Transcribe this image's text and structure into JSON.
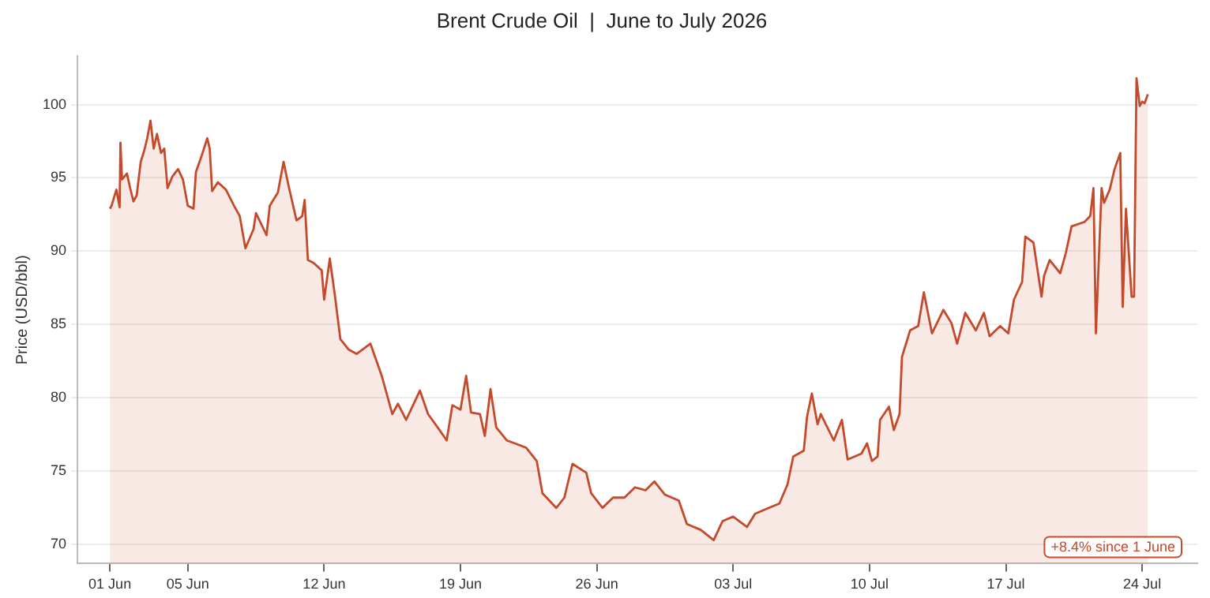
{
  "chart_data": {
    "type": "area",
    "title": "Brent Crude Oil  |  June to July 2026",
    "ylabel": "Price (USD/bbl)",
    "x": [
      "2026-06-01T00:00",
      "2026-06-01T02:00",
      "2026-06-01T08:00",
      "2026-06-01T12:00",
      "2026-06-01T13:00",
      "2026-06-01T15:00",
      "2026-06-01T21:00",
      "2026-06-02T01:00",
      "2026-06-02T05:00",
      "2026-06-02T09:00",
      "2026-06-02T14:00",
      "2026-06-02T18:00",
      "2026-06-02T22:00",
      "2026-06-03T02:00",
      "2026-06-03T06:00",
      "2026-06-03T10:00",
      "2026-06-03T15:00",
      "2026-06-03T19:00",
      "2026-06-03T23:00",
      "2026-06-04T05:00",
      "2026-06-04T12:00",
      "2026-06-04T18:00",
      "2026-06-05T00:00",
      "2026-06-05T07:00",
      "2026-06-05T10:00",
      "2026-06-05T17:00",
      "2026-06-06T00:00",
      "2026-06-06T03:00",
      "2026-06-06T06:00",
      "2026-06-06T13:00",
      "2026-06-06T23:00",
      "2026-06-07T09:00",
      "2026-06-07T16:00",
      "2026-06-07T23:00",
      "2026-06-08T09:00",
      "2026-06-08T12:00",
      "2026-06-09T01:00",
      "2026-06-09T05:00",
      "2026-06-09T15:00",
      "2026-06-09T22:00",
      "2026-06-10T04:00",
      "2026-06-10T14:00",
      "2026-06-10T21:00",
      "2026-06-11T00:00",
      "2026-06-11T04:00",
      "2026-06-11T11:00",
      "2026-06-11T21:00",
      "2026-06-12T00:00",
      "2026-06-12T07:00",
      "2026-06-12T13:00",
      "2026-06-12T20:00",
      "2026-06-13T06:00",
      "2026-06-13T16:00",
      "2026-06-14T09:00",
      "2026-06-14T23:00",
      "2026-06-15T12:00",
      "2026-06-15T19:00",
      "2026-06-16T05:00",
      "2026-06-16T22:00",
      "2026-06-17T08:00",
      "2026-06-17T21:00",
      "2026-06-18T07:00",
      "2026-06-18T14:00",
      "2026-06-19T00:00",
      "2026-06-19T07:00",
      "2026-06-19T13:00",
      "2026-06-20T00:00",
      "2026-06-20T06:00",
      "2026-06-20T13:00",
      "2026-06-20T20:00",
      "2026-06-21T09:00",
      "2026-06-21T19:00",
      "2026-06-22T09:00",
      "2026-06-22T22:00",
      "2026-06-23T05:00",
      "2026-06-23T22:00",
      "2026-06-24T08:00",
      "2026-06-24T18:00",
      "2026-06-25T11:00",
      "2026-06-25T17:00",
      "2026-06-26T07:00",
      "2026-06-26T20:00",
      "2026-06-27T10:00",
      "2026-06-27T23:00",
      "2026-06-28T12:00",
      "2026-06-28T23:00",
      "2026-06-29T12:00",
      "2026-06-30T05:00",
      "2026-06-30T15:00",
      "2026-07-01T08:00",
      "2026-07-02T00:00",
      "2026-07-02T11:00",
      "2026-07-03T00:00",
      "2026-07-03T17:00",
      "2026-07-04T03:00",
      "2026-07-04T20:00",
      "2026-07-05T09:00",
      "2026-07-05T19:00",
      "2026-07-06T02:00",
      "2026-07-06T15:00",
      "2026-07-06T19:00",
      "2026-07-07T01:00",
      "2026-07-07T08:00",
      "2026-07-07T12:00",
      "2026-07-08T04:00",
      "2026-07-08T14:00",
      "2026-07-08T21:00",
      "2026-07-09T14:00",
      "2026-07-09T21:00",
      "2026-07-10T03:00",
      "2026-07-10T10:00",
      "2026-07-10T13:00",
      "2026-07-11T00:00",
      "2026-07-11T06:00",
      "2026-07-11T13:00",
      "2026-07-11T16:00",
      "2026-07-12T02:00",
      "2026-07-12T12:00",
      "2026-07-12T19:00",
      "2026-07-13T05:00",
      "2026-07-13T19:00",
      "2026-07-14T05:00",
      "2026-07-14T12:00",
      "2026-07-14T22:00",
      "2026-07-15T11:00",
      "2026-07-15T21:00",
      "2026-07-16T04:00",
      "2026-07-16T17:00",
      "2026-07-17T03:00",
      "2026-07-17T10:00",
      "2026-07-17T20:00",
      "2026-07-18T00:00",
      "2026-07-18T10:00",
      "2026-07-18T20:00",
      "2026-07-18T23:00",
      "2026-07-19T06:00",
      "2026-07-19T19:00",
      "2026-07-20T02:00",
      "2026-07-20T09:00",
      "2026-07-21T01:00",
      "2026-07-21T08:00",
      "2026-07-21T12:00",
      "2026-07-21T15:00",
      "2026-07-21T22:00",
      "2026-07-22T01:00",
      "2026-07-22T08:00",
      "2026-07-22T14:00",
      "2026-07-22T21:00",
      "2026-07-23T00:00",
      "2026-07-23T04:00",
      "2026-07-23T11:00",
      "2026-07-23T14:00",
      "2026-07-23T17:00",
      "2026-07-23T21:00",
      "2026-07-24T00:00",
      "2026-07-24T03:00",
      "2026-07-24T07:00"
    ],
    "series": [
      {
        "color": "#c44a2c",
        "values": [
          92.9,
          93.1,
          94.2,
          93.0,
          97.4,
          94.9,
          95.3,
          94.3,
          93.4,
          93.8,
          96.1,
          96.8,
          97.7,
          98.9,
          97.0,
          98.0,
          96.7,
          97.0,
          94.3,
          95.1,
          95.6,
          94.9,
          93.1,
          92.9,
          95.4,
          96.5,
          97.7,
          97.0,
          94.1,
          94.7,
          94.2,
          93.1,
          92.4,
          90.2,
          91.5,
          92.6,
          91.1,
          93.1,
          94.0,
          96.1,
          94.5,
          92.1,
          92.4,
          93.5,
          89.4,
          89.2,
          88.7,
          86.7,
          89.5,
          87.1,
          84.0,
          83.3,
          83.0,
          83.7,
          81.5,
          78.9,
          79.6,
          78.5,
          80.5,
          78.9,
          77.9,
          77.1,
          79.5,
          79.2,
          81.5,
          79.0,
          78.9,
          77.4,
          80.6,
          78.0,
          77.1,
          76.9,
          76.6,
          75.7,
          73.5,
          72.5,
          73.2,
          75.5,
          74.9,
          73.5,
          72.5,
          73.2,
          73.2,
          73.9,
          73.7,
          74.3,
          73.4,
          73.0,
          71.4,
          71.0,
          70.3,
          71.6,
          71.9,
          71.2,
          72.1,
          72.5,
          72.8,
          74.1,
          76.0,
          76.4,
          78.7,
          80.3,
          78.2,
          78.9,
          77.1,
          78.5,
          75.8,
          76.2,
          76.9,
          75.7,
          76.0,
          78.5,
          79.4,
          77.8,
          78.9,
          82.8,
          84.6,
          84.9,
          87.2,
          84.4,
          86.0,
          85.1,
          83.7,
          85.8,
          84.6,
          85.8,
          84.2,
          84.9,
          84.4,
          86.7,
          87.9,
          91.0,
          90.6,
          86.9,
          88.3,
          89.4,
          88.5,
          89.9,
          91.7,
          92.0,
          92.4,
          94.3,
          84.4,
          94.3,
          93.3,
          94.2,
          95.6,
          96.7,
          86.2,
          92.9,
          86.9,
          86.9,
          101.8,
          99.9,
          100.2,
          100.1,
          100.7
        ]
      }
    ],
    "xlim": [
      "2026-05-30T08:00",
      "2026-07-26T20:00"
    ],
    "xticks": [
      {
        "value": "2026-06-01",
        "label": "01 Jun"
      },
      {
        "value": "2026-06-05",
        "label": "05 Jun"
      },
      {
        "value": "2026-06-12",
        "label": "12 Jun"
      },
      {
        "value": "2026-06-19",
        "label": "19 Jun"
      },
      {
        "value": "2026-06-26",
        "label": "26 Jun"
      },
      {
        "value": "2026-07-03",
        "label": "03 Jul"
      },
      {
        "value": "2026-07-10",
        "label": "10 Jul"
      },
      {
        "value": "2026-07-17",
        "label": "17 Jul"
      },
      {
        "value": "2026-07-24",
        "label": "24 Jul"
      }
    ],
    "ylim": [
      68.7,
      103.3
    ],
    "yticks": [
      70,
      75,
      80,
      85,
      90,
      95,
      100
    ],
    "grid": "y",
    "legend": false,
    "marker": "none",
    "line_style": "solid",
    "annotations": [
      "+8.4% since 1 June"
    ]
  }
}
